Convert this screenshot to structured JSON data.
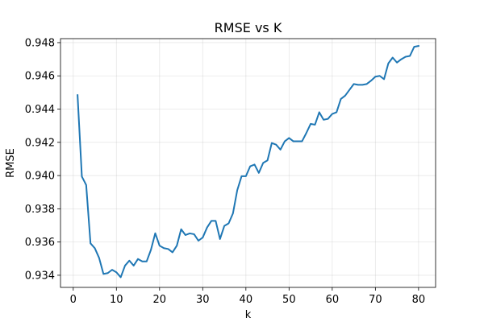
{
  "chart_data": {
    "type": "line",
    "title": "RMSE vs K",
    "xlabel": "k",
    "ylabel": "RMSE",
    "xlim": [
      -2.95,
      83.95
    ],
    "ylim": [
      0.93327,
      0.94824
    ],
    "xticks": [
      0,
      10,
      20,
      30,
      40,
      50,
      60,
      70,
      80
    ],
    "xtick_labels": [
      "0",
      "10",
      "20",
      "30",
      "40",
      "50",
      "60",
      "70",
      "80"
    ],
    "yticks": [
      0.934,
      0.936,
      0.938,
      0.94,
      0.942,
      0.944,
      0.946,
      0.948
    ],
    "ytick_labels": [
      "0.934",
      "0.936",
      "0.938",
      "0.940",
      "0.942",
      "0.944",
      "0.946",
      "0.948"
    ],
    "grid": true,
    "legend": false,
    "series": [
      {
        "color": "#1f77b4",
        "x": [
          1,
          2,
          3,
          4,
          5,
          6,
          7,
          8,
          9,
          10,
          11,
          12,
          13,
          14,
          15,
          16,
          17,
          18,
          19,
          20,
          21,
          22,
          23,
          24,
          25,
          26,
          27,
          28,
          29,
          30,
          31,
          32,
          33,
          34,
          35,
          36,
          37,
          38,
          39,
          40,
          41,
          42,
          43,
          44,
          45,
          46,
          47,
          48,
          49,
          50,
          51,
          52,
          53,
          54,
          55,
          56,
          57,
          58,
          59,
          60,
          61,
          62,
          63,
          64,
          65,
          66,
          67,
          68,
          69,
          70,
          71,
          72,
          73,
          74,
          75,
          76,
          77,
          78,
          79,
          80
        ],
        "y": [
          0.94484,
          0.93994,
          0.93943,
          0.93592,
          0.93563,
          0.93504,
          0.93408,
          0.93413,
          0.93433,
          0.93418,
          0.93388,
          0.93458,
          0.93488,
          0.93458,
          0.93498,
          0.93483,
          0.93483,
          0.93553,
          0.93653,
          0.93578,
          0.93563,
          0.93558,
          0.93538,
          0.93578,
          0.93677,
          0.93642,
          0.93652,
          0.93647,
          0.93608,
          0.93627,
          0.93687,
          0.93727,
          0.93727,
          0.93618,
          0.93697,
          0.93712,
          0.93772,
          0.93912,
          0.93996,
          0.93996,
          0.94056,
          0.94066,
          0.94016,
          0.94076,
          0.94091,
          0.94196,
          0.94186,
          0.94156,
          0.94206,
          0.94226,
          0.94206,
          0.94206,
          0.94206,
          0.94256,
          0.94311,
          0.94306,
          0.94381,
          0.94336,
          0.94341,
          0.94371,
          0.94381,
          0.94461,
          0.94481,
          0.94516,
          0.94551,
          0.94546,
          0.94546,
          0.94551,
          0.94571,
          0.94595,
          0.946,
          0.9458,
          0.94675,
          0.9471,
          0.9468,
          0.947,
          0.94715,
          0.9472,
          0.94775,
          0.9478
        ]
      }
    ]
  }
}
